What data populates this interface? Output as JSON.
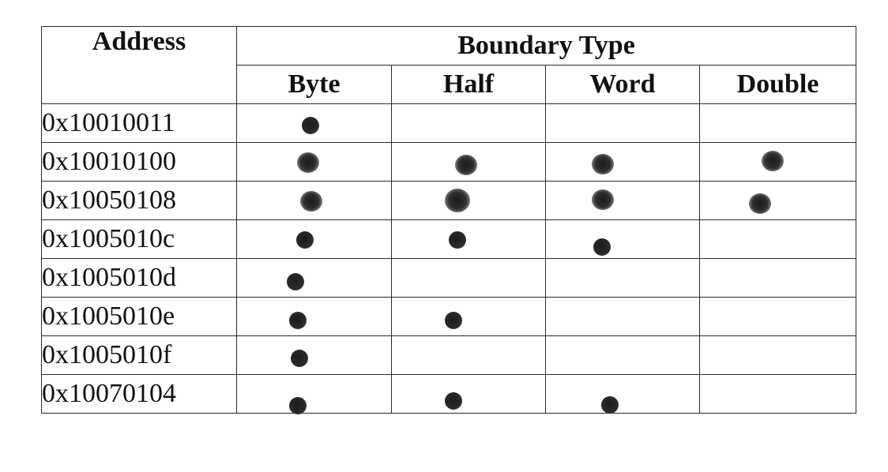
{
  "table": {
    "address_header": "Address",
    "group_header": "Boundary Type",
    "columns": [
      "Byte",
      "Half",
      "Word",
      "Double"
    ],
    "rows": [
      {
        "address": "0x10010011",
        "marks": [
          true,
          false,
          false,
          false
        ]
      },
      {
        "address": "0x10010100",
        "marks": [
          true,
          true,
          true,
          true
        ]
      },
      {
        "address": "0x10050108",
        "marks": [
          true,
          true,
          true,
          true
        ]
      },
      {
        "address": "0x1005010c",
        "marks": [
          true,
          true,
          true,
          false
        ]
      },
      {
        "address": "0x1005010d",
        "marks": [
          true,
          false,
          false,
          false
        ]
      },
      {
        "address": "0x1005010e",
        "marks": [
          true,
          true,
          false,
          false
        ]
      },
      {
        "address": "0x1005010f",
        "marks": [
          true,
          false,
          false,
          false
        ]
      },
      {
        "address": "0x10070104",
        "marks": [
          true,
          true,
          true,
          false
        ]
      }
    ]
  }
}
